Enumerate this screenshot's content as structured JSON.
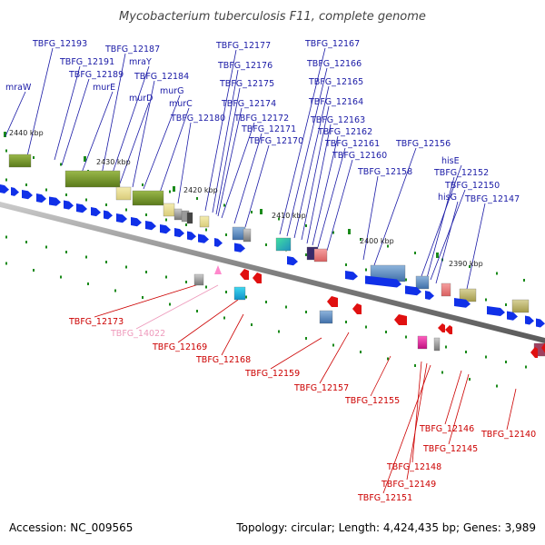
{
  "title": "Mycobacterium tuberculosis F11, complete genome",
  "footer": {
    "accession": "Accession: NC_009565",
    "summary": "Topology: circular; Length: 4,424,435 bp; Genes: 3,989"
  },
  "colors": {
    "forward_label": "#1a1aa6",
    "reverse_label": "#cc0000",
    "pseudo_label": "#ee99bb",
    "gene_arrow_forward": "#1030e8",
    "gene_arrow_reverse": "#e01010",
    "backbone": "#808080",
    "tick": "#1a8a1a"
  },
  "scale_labels": [
    "2440 kbp",
    "2430 kbp",
    "2420 kbp",
    "2410 kbp",
    "2400 kbp",
    "2390 kbp"
  ],
  "forward_labels": [
    "mraW",
    "TBFG_12193",
    "TBFG_12191",
    "TBFG_12189",
    "murE",
    "TBFG_12187",
    "mraY",
    "murD",
    "TBFG_12184",
    "murG",
    "murC",
    "TBFG_12180",
    "TBFG_12177",
    "TBFG_12176",
    "TBFG_12175",
    "TBFG_12174",
    "TBFG_12172",
    "TBFG_12171",
    "TBFG_12170",
    "TBFG_12167",
    "TBFG_12166",
    "TBFG_12165",
    "TBFG_12164",
    "TBFG_12163",
    "TBFG_12162",
    "TBFG_12161",
    "TBFG_12160",
    "TBFG_12158",
    "TBFG_12156",
    "hisE",
    "TBFG_12152",
    "TBFG_12150",
    "hisG",
    "TBFG_12147"
  ],
  "reverse_labels": [
    "TBFG_12173",
    "TBFG_14022",
    "TBFG_12169",
    "TBFG_12168",
    "TBFG_12159",
    "TBFG_12157",
    "TBFG_12155",
    "TBFG_12146",
    "TBFG_12145",
    "TBFG_12140",
    "TBFG_12148",
    "TBFG_12149",
    "TBFG_12151"
  ]
}
